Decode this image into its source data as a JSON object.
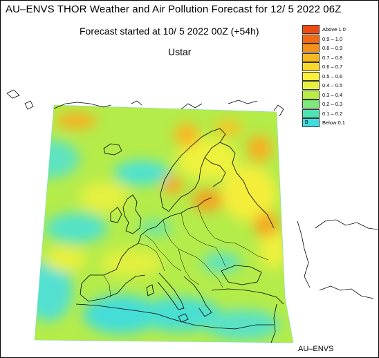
{
  "header": {
    "title": "AU–ENVS THOR Weather and Air Pollution Forecast for 12/ 5 2022  06Z",
    "subtitle": "Forecast started at 10/ 5 2022  00Z (+54h)",
    "variable": "Ustar"
  },
  "credit": "AU–ENVS",
  "legend": {
    "items": [
      {
        "label": "Above   1.0",
        "color": "#f04a10"
      },
      {
        "label": "0.9  –  1.0",
        "color": "#f26a12"
      },
      {
        "label": "0.8  –  0.9",
        "color": "#f5901a"
      },
      {
        "label": "0.7  –  0.8",
        "color": "#f8b820"
      },
      {
        "label": "0.6  –  0.7",
        "color": "#fbd92a"
      },
      {
        "label": "0.5  –  0.6",
        "color": "#fff03a"
      },
      {
        "label": "0.4  –  0.5",
        "color": "#e8f23e"
      },
      {
        "label": "0.3  –  0.4",
        "color": "#b8ee44"
      },
      {
        "label": "0.2  –  0.3",
        "color": "#7ee87a"
      },
      {
        "label": "0.1  –  0.2",
        "color": "#4ee3b2"
      },
      {
        "label": "Below   0.1",
        "color": "#3fdde0",
        "swatch_text": "B"
      }
    ]
  },
  "colors": {
    "low": "#3fdde0",
    "mid_low": "#7ee87a",
    "mid": "#d8f04a",
    "high": "#f5a020",
    "border": "#000000"
  }
}
